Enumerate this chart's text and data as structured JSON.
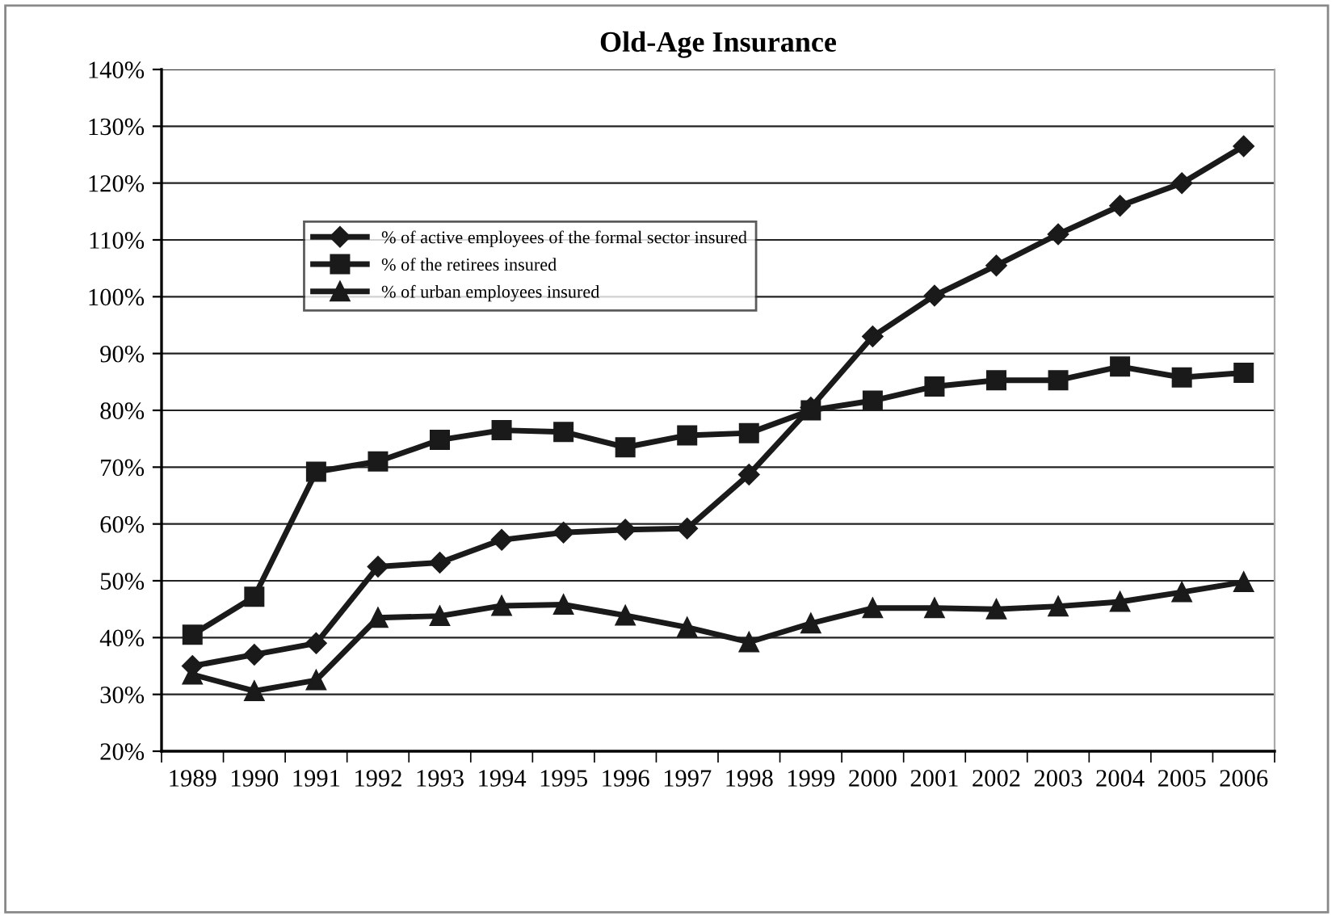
{
  "chart_data": {
    "type": "line",
    "title": "Old-Age Insurance",
    "categories": [
      "1989",
      "1990",
      "1991",
      "1992",
      "1993",
      "1994",
      "1995",
      "1996",
      "1997",
      "1998",
      "1999",
      "2000",
      "2001",
      "2002",
      "2003",
      "2004",
      "2005",
      "2006"
    ],
    "series": [
      {
        "name": "% of active employees of the formal sector insured",
        "color": "#1a1a1a",
        "marker": "diamond",
        "values": [
          35,
          37,
          39,
          52.5,
          53.2,
          57.2,
          58.5,
          59,
          59.2,
          68.7,
          80.5,
          93,
          100.2,
          105.5,
          111,
          116,
          120,
          126.5
        ]
      },
      {
        "name": "% of the retirees insured",
        "color": "#1a1a1a",
        "marker": "square",
        "values": [
          40.5,
          47.2,
          69.2,
          71,
          74.8,
          76.5,
          76.2,
          73.5,
          75.6,
          76,
          80,
          81.7,
          84.2,
          85.3,
          85.3,
          87.7,
          85.8,
          86.6
        ]
      },
      {
        "name": "% of urban employees insured",
        "color": "#1a1a1a",
        "marker": "triangle",
        "values": [
          33.5,
          30.6,
          32.5,
          43.5,
          43.8,
          45.6,
          45.8,
          43.9,
          41.8,
          39.2,
          42.5,
          45.2,
          45.2,
          45,
          45.5,
          46.3,
          48,
          49.8
        ]
      }
    ],
    "ylim": [
      20,
      140
    ],
    "yticks": [
      {
        "value": 20,
        "label": "20%"
      },
      {
        "value": 30,
        "label": "30%"
      },
      {
        "value": 40,
        "label": "40%"
      },
      {
        "value": 50,
        "label": "50%"
      },
      {
        "value": 60,
        "label": "60%"
      },
      {
        "value": 70,
        "label": "70%"
      },
      {
        "value": 80,
        "label": "80%"
      },
      {
        "value": 90,
        "label": "90%"
      },
      {
        "value": 100,
        "label": "100%"
      },
      {
        "value": 110,
        "label": "110%"
      },
      {
        "value": 120,
        "label": "120%"
      },
      {
        "value": 130,
        "label": "130%"
      },
      {
        "value": 140,
        "label": "140%"
      }
    ],
    "grid": "y",
    "legend": "top left",
    "line_style": "solid"
  }
}
